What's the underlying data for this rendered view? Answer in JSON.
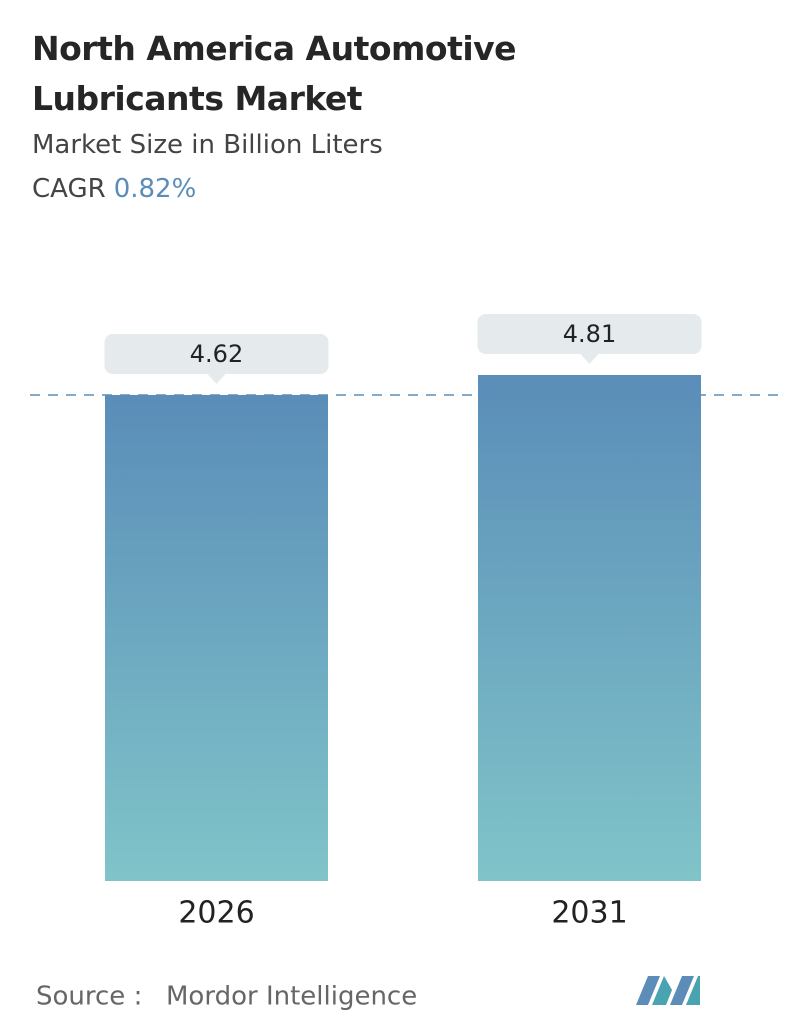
{
  "chart_data": {
    "type": "bar",
    "title": "North America Automotive Lubricants Market",
    "subtitle": "Market Size in Billion Liters",
    "cagr_label": "CAGR",
    "cagr": "0.82%",
    "categories": [
      "2026",
      "2031"
    ],
    "values": [
      4.62,
      4.81
    ],
    "color_top": "#5a8db8",
    "color_bottom": "#80c4c9",
    "source_label": "Source :",
    "source": "Mordor Intelligence"
  }
}
